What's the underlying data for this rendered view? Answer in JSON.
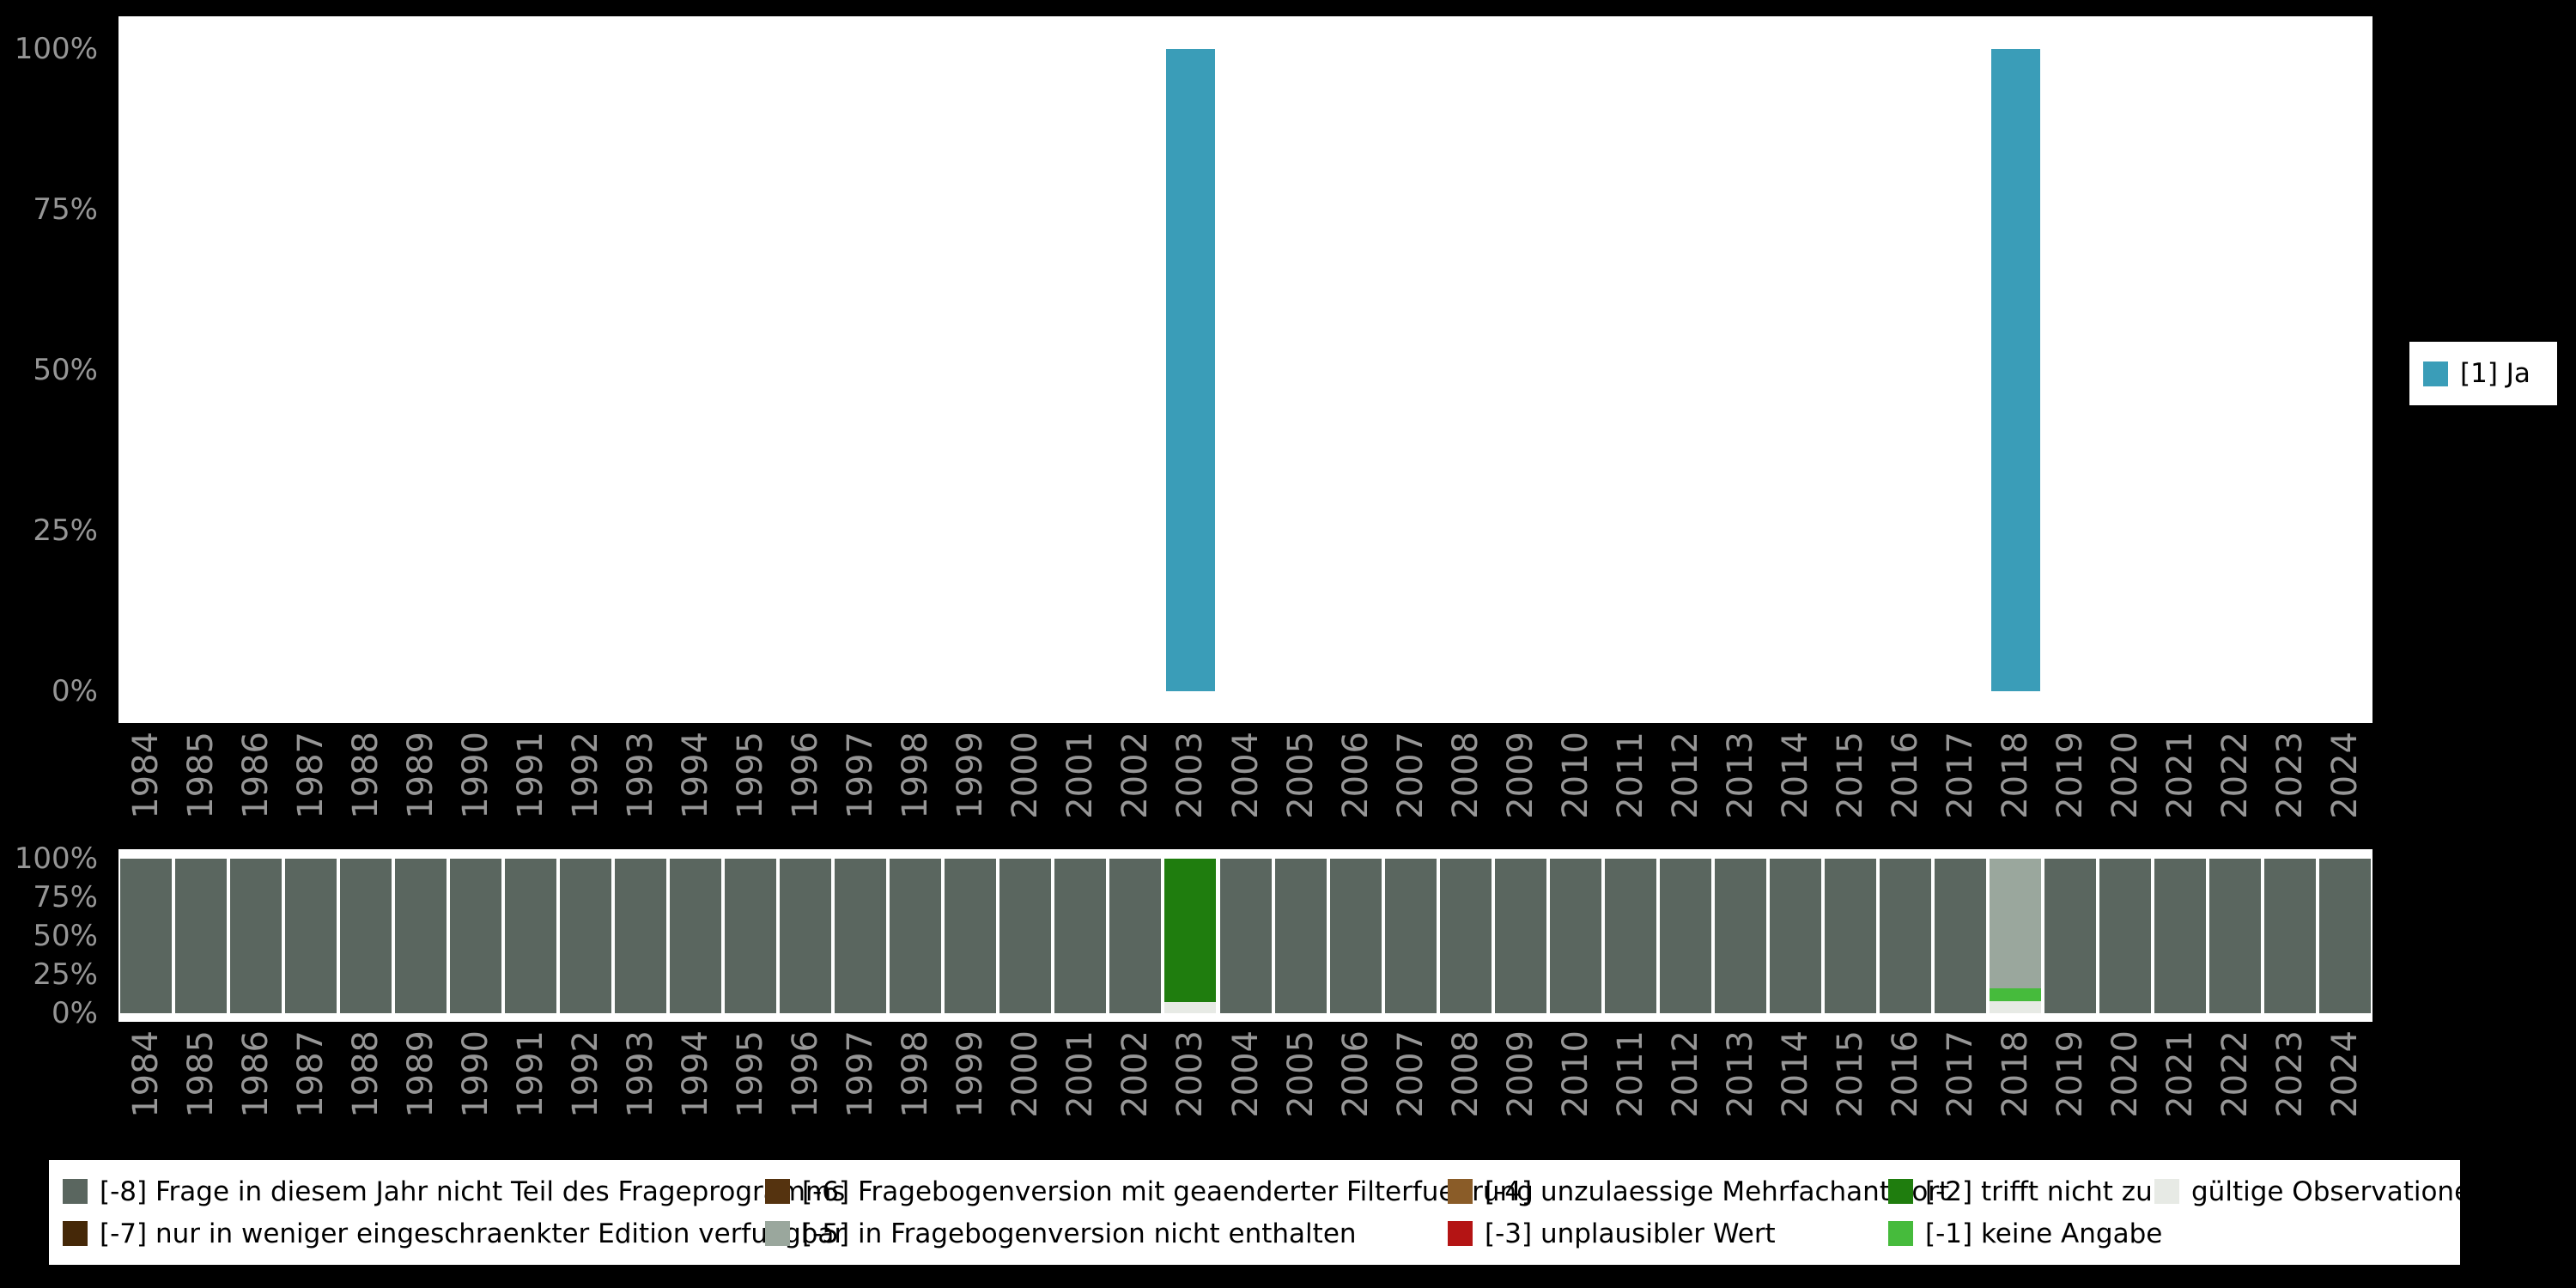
{
  "page": {
    "background": "#000000",
    "panel_background": "#ffffff",
    "tick_text_color": "#969696",
    "legend_text_color": "#000000"
  },
  "colors": {
    "ja": "#3a9db8",
    "m8": "#5a665f",
    "m7": "#452808",
    "m6": "#55330f",
    "m5": "#9aa79d",
    "m4": "#8a5c28",
    "m3": "#b41414",
    "m2": "#1f7d0e",
    "m1": "#46bb3c",
    "valid": "#e7eae5"
  },
  "legend_right": {
    "items": [
      {
        "key": "ja",
        "label": "[1] Ja"
      }
    ]
  },
  "legend_bottom": {
    "items": [
      {
        "key": "m8",
        "label": "[-8] Frage in diesem Jahr nicht Teil des Frageprogramms"
      },
      {
        "key": "m7",
        "label": "[-7] nur in weniger eingeschraenkter Edition verfuegbar"
      },
      {
        "key": "m6",
        "label": "[-6] Fragebogenversion mit geaenderter Filterfuehrung"
      },
      {
        "key": "m5",
        "label": "[-5] in Fragebogenversion nicht enthalten"
      },
      {
        "key": "m4",
        "label": "[-4] unzulaessige Mehrfachantwort"
      },
      {
        "key": "m3",
        "label": "[-3] unplausibler Wert"
      },
      {
        "key": "m2",
        "label": "[-2] trifft nicht zu"
      },
      {
        "key": "m1",
        "label": "[-1] keine Angabe"
      },
      {
        "key": "valid",
        "label": "gültige Observationen"
      }
    ]
  },
  "chart_data": [
    {
      "name": "answers",
      "type": "bar",
      "title": "",
      "xlabel": "",
      "ylabel": "",
      "ylim": [
        0,
        100
      ],
      "grid": false,
      "legend_position": "right",
      "categories": [
        "1984",
        "1985",
        "1986",
        "1987",
        "1988",
        "1989",
        "1990",
        "1991",
        "1992",
        "1993",
        "1994",
        "1995",
        "1996",
        "1997",
        "1998",
        "1999",
        "2000",
        "2001",
        "2002",
        "2003",
        "2004",
        "2005",
        "2006",
        "2007",
        "2008",
        "2009",
        "2010",
        "2011",
        "2012",
        "2013",
        "2014",
        "2015",
        "2016",
        "2017",
        "2018",
        "2019",
        "2020",
        "2021",
        "2022",
        "2023",
        "2024"
      ],
      "yticks": [
        {
          "value": 100,
          "label": "100%"
        },
        {
          "value": 75,
          "label": "75%"
        },
        {
          "value": 50,
          "label": "50%"
        },
        {
          "value": 25,
          "label": "25%"
        },
        {
          "value": 0,
          "label": "0%"
        }
      ],
      "series": [
        {
          "key": "ja",
          "name": "[1] Ja",
          "values": [
            0,
            0,
            0,
            0,
            0,
            0,
            0,
            0,
            0,
            0,
            0,
            0,
            0,
            0,
            0,
            0,
            0,
            0,
            0,
            100,
            0,
            0,
            0,
            0,
            0,
            0,
            0,
            0,
            0,
            0,
            0,
            0,
            0,
            0,
            100,
            0,
            0,
            0,
            0,
            0,
            0
          ]
        }
      ]
    },
    {
      "name": "missings",
      "type": "stacked-bar",
      "title": "",
      "xlabel": "",
      "ylabel": "",
      "ylim": [
        0,
        100
      ],
      "grid": false,
      "legend_position": "bottom",
      "categories": [
        "1984",
        "1985",
        "1986",
        "1987",
        "1988",
        "1989",
        "1990",
        "1991",
        "1992",
        "1993",
        "1994",
        "1995",
        "1996",
        "1997",
        "1998",
        "1999",
        "2000",
        "2001",
        "2002",
        "2003",
        "2004",
        "2005",
        "2006",
        "2007",
        "2008",
        "2009",
        "2010",
        "2011",
        "2012",
        "2013",
        "2014",
        "2015",
        "2016",
        "2017",
        "2018",
        "2019",
        "2020",
        "2021",
        "2022",
        "2023",
        "2024"
      ],
      "yticks": [
        {
          "value": 100,
          "label": "100%"
        },
        {
          "value": 75,
          "label": "75%"
        },
        {
          "value": 50,
          "label": "50%"
        },
        {
          "value": 25,
          "label": "25%"
        },
        {
          "value": 0,
          "label": "0%"
        }
      ],
      "series": [
        {
          "key": "valid",
          "name": "gültige Observationen",
          "values": [
            0,
            0,
            0,
            0,
            0,
            0,
            0,
            0,
            0,
            0,
            0,
            0,
            0,
            0,
            0,
            0,
            0,
            0,
            0,
            7,
            0,
            0,
            0,
            0,
            0,
            0,
            0,
            0,
            0,
            0,
            0,
            0,
            0,
            0,
            8,
            0,
            0,
            0,
            0,
            0,
            0
          ]
        },
        {
          "key": "m1",
          "name": "[-1] keine Angabe",
          "values": [
            0,
            0,
            0,
            0,
            0,
            0,
            0,
            0,
            0,
            0,
            0,
            0,
            0,
            0,
            0,
            0,
            0,
            0,
            0,
            0,
            0,
            0,
            0,
            0,
            0,
            0,
            0,
            0,
            0,
            0,
            0,
            0,
            0,
            0,
            8,
            0,
            0,
            0,
            0,
            0,
            0
          ]
        },
        {
          "key": "m2",
          "name": "[-2] trifft nicht zu",
          "values": [
            0,
            0,
            0,
            0,
            0,
            0,
            0,
            0,
            0,
            0,
            0,
            0,
            0,
            0,
            0,
            0,
            0,
            0,
            0,
            93,
            0,
            0,
            0,
            0,
            0,
            0,
            0,
            0,
            0,
            0,
            0,
            0,
            0,
            0,
            0,
            0,
            0,
            0,
            0,
            0,
            0
          ]
        },
        {
          "key": "m5",
          "name": "[-5] in Fragebogenversion nicht enthalten",
          "values": [
            0,
            0,
            0,
            0,
            0,
            0,
            0,
            0,
            0,
            0,
            0,
            0,
            0,
            0,
            0,
            0,
            0,
            0,
            0,
            0,
            0,
            0,
            0,
            0,
            0,
            0,
            0,
            0,
            0,
            0,
            0,
            0,
            0,
            0,
            84,
            0,
            0,
            0,
            0,
            0,
            0
          ]
        },
        {
          "key": "m8",
          "name": "[-8] Frage in diesem Jahr nicht Teil des Frageprogramms",
          "values": [
            100,
            100,
            100,
            100,
            100,
            100,
            100,
            100,
            100,
            100,
            100,
            100,
            100,
            100,
            100,
            100,
            100,
            100,
            100,
            0,
            100,
            100,
            100,
            100,
            100,
            100,
            100,
            100,
            100,
            100,
            100,
            100,
            100,
            100,
            0,
            100,
            100,
            100,
            100,
            100,
            100
          ]
        }
      ]
    }
  ]
}
